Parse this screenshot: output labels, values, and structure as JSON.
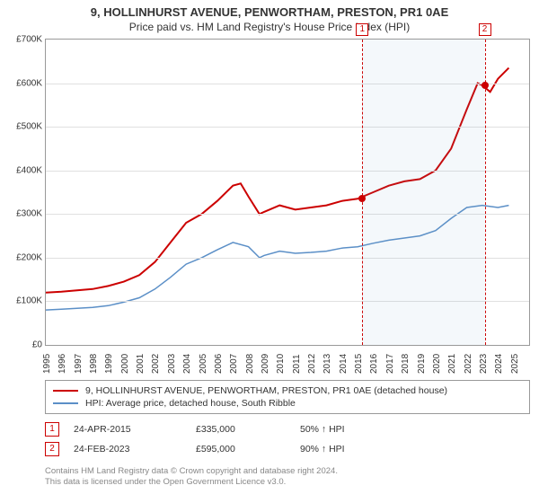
{
  "title": {
    "line1": "9, HOLLINHURST AVENUE, PENWORTHAM, PRESTON, PR1 0AE",
    "line2": "Price paid vs. HM Land Registry's House Price Index (HPI)"
  },
  "chart": {
    "type": "line",
    "background_color": "#ffffff",
    "grid_color": "#e0e0e0",
    "border_color": "#999999",
    "x": {
      "min": 1995,
      "max": 2026,
      "ticks": [
        1995,
        1996,
        1997,
        1998,
        1999,
        2000,
        2001,
        2002,
        2003,
        2004,
        2005,
        2006,
        2007,
        2008,
        2009,
        2010,
        2011,
        2012,
        2013,
        2014,
        2015,
        2016,
        2017,
        2018,
        2019,
        2020,
        2021,
        2022,
        2023,
        2024,
        2025
      ],
      "label_fontsize": 10
    },
    "y": {
      "min": 0,
      "max": 700000,
      "tick_step": 100000,
      "tick_labels": [
        "£0",
        "£100K",
        "£200K",
        "£300K",
        "£400K",
        "£500K",
        "£600K",
        "£700K"
      ],
      "label_fontsize": 10
    },
    "shade": {
      "from": 2015.3,
      "to": 2023.15,
      "color": "rgba(120,160,200,0.08)"
    },
    "series": [
      {
        "name": "9, HOLLINHURST AVENUE, PENWORTHAM, PRESTON, PR1 0AE (detached house)",
        "color": "#cc0000",
        "width": 2,
        "points": [
          [
            1995,
            120000
          ],
          [
            1996,
            122000
          ],
          [
            1997,
            125000
          ],
          [
            1998,
            128000
          ],
          [
            1999,
            135000
          ],
          [
            2000,
            145000
          ],
          [
            2001,
            160000
          ],
          [
            2002,
            190000
          ],
          [
            2003,
            235000
          ],
          [
            2004,
            280000
          ],
          [
            2005,
            300000
          ],
          [
            2006,
            330000
          ],
          [
            2007,
            365000
          ],
          [
            2007.5,
            370000
          ],
          [
            2008,
            340000
          ],
          [
            2008.7,
            300000
          ],
          [
            2009,
            305000
          ],
          [
            2010,
            320000
          ],
          [
            2011,
            310000
          ],
          [
            2012,
            315000
          ],
          [
            2013,
            320000
          ],
          [
            2014,
            330000
          ],
          [
            2015,
            335000
          ],
          [
            2016,
            350000
          ],
          [
            2017,
            365000
          ],
          [
            2018,
            375000
          ],
          [
            2019,
            380000
          ],
          [
            2020,
            400000
          ],
          [
            2021,
            450000
          ],
          [
            2022,
            540000
          ],
          [
            2022.7,
            600000
          ],
          [
            2023,
            595000
          ],
          [
            2023.5,
            580000
          ],
          [
            2024,
            610000
          ],
          [
            2024.7,
            635000
          ]
        ]
      },
      {
        "name": "HPI: Average price, detached house, South Ribble",
        "color": "#5b8fc7",
        "width": 1.5,
        "points": [
          [
            1995,
            80000
          ],
          [
            1996,
            82000
          ],
          [
            1997,
            84000
          ],
          [
            1998,
            86000
          ],
          [
            1999,
            90000
          ],
          [
            2000,
            98000
          ],
          [
            2001,
            108000
          ],
          [
            2002,
            128000
          ],
          [
            2003,
            155000
          ],
          [
            2004,
            185000
          ],
          [
            2005,
            200000
          ],
          [
            2006,
            218000
          ],
          [
            2007,
            235000
          ],
          [
            2008,
            225000
          ],
          [
            2008.7,
            200000
          ],
          [
            2009,
            205000
          ],
          [
            2010,
            215000
          ],
          [
            2011,
            210000
          ],
          [
            2012,
            212000
          ],
          [
            2013,
            215000
          ],
          [
            2014,
            222000
          ],
          [
            2015,
            225000
          ],
          [
            2016,
            233000
          ],
          [
            2017,
            240000
          ],
          [
            2018,
            245000
          ],
          [
            2019,
            250000
          ],
          [
            2020,
            262000
          ],
          [
            2021,
            290000
          ],
          [
            2022,
            315000
          ],
          [
            2023,
            320000
          ],
          [
            2024,
            315000
          ],
          [
            2024.7,
            320000
          ]
        ]
      }
    ],
    "markers": [
      {
        "n": "1",
        "x": 2015.3,
        "y": 335000,
        "color": "#cc0000"
      },
      {
        "n": "2",
        "x": 2023.15,
        "y": 595000,
        "color": "#cc0000"
      }
    ]
  },
  "legend": {
    "items": [
      {
        "color": "#cc0000",
        "label": "9, HOLLINHURST AVENUE, PENWORTHAM, PRESTON, PR1 0AE (detached house)"
      },
      {
        "color": "#5b8fc7",
        "label": "HPI: Average price, detached house, South Ribble"
      }
    ]
  },
  "sales": [
    {
      "n": "1",
      "date": "24-APR-2015",
      "price": "£335,000",
      "delta": "50% ↑ HPI"
    },
    {
      "n": "2",
      "date": "24-FEB-2023",
      "price": "£595,000",
      "delta": "90% ↑ HPI"
    }
  ],
  "footer": {
    "line1": "Contains HM Land Registry data © Crown copyright and database right 2024.",
    "line2": "This data is licensed under the Open Government Licence v3.0."
  }
}
